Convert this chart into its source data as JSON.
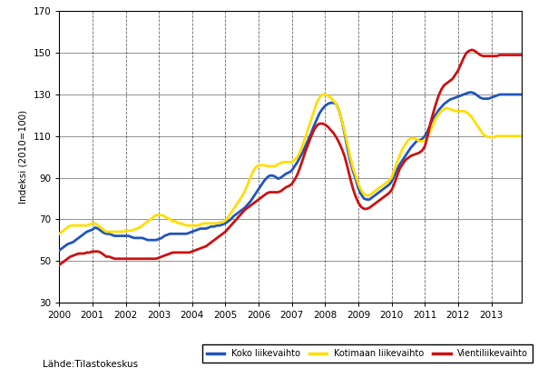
{
  "ylabel": "Indeksi (2010=100)",
  "source_label": "Lähde:Tilastokeskus",
  "ylim": [
    30,
    170
  ],
  "yticks": [
    30,
    50,
    70,
    90,
    110,
    130,
    150,
    170
  ],
  "xlim": [
    2000.0,
    2013.92
  ],
  "xticks": [
    2000,
    2001,
    2002,
    2003,
    2004,
    2005,
    2006,
    2007,
    2008,
    2009,
    2010,
    2011,
    2012,
    2013
  ],
  "line_colors": {
    "koko": "#2255bb",
    "kotimaan": "#ffdd00",
    "vienti": "#cc1111"
  },
  "legend_labels": [
    "Koko liikevaihto",
    "Kotimaan liikevaihto",
    "Vientiliikevaihto"
  ],
  "koko_liikevaihto": [
    55.0,
    56.0,
    57.0,
    58.0,
    58.5,
    59.0,
    60.0,
    61.0,
    62.0,
    63.0,
    64.0,
    64.5,
    65.0,
    66.0,
    65.5,
    64.5,
    63.5,
    63.0,
    63.0,
    62.5,
    62.0,
    62.0,
    62.0,
    62.0,
    62.0,
    62.0,
    61.5,
    61.0,
    61.0,
    61.0,
    61.0,
    60.5,
    60.0,
    60.0,
    60.0,
    60.0,
    60.5,
    61.0,
    62.0,
    62.5,
    63.0,
    63.0,
    63.0,
    63.0,
    63.0,
    63.0,
    63.0,
    63.5,
    64.0,
    64.5,
    65.0,
    65.5,
    65.5,
    65.5,
    66.0,
    66.5,
    66.5,
    67.0,
    67.0,
    67.5,
    68.0,
    69.0,
    70.0,
    71.5,
    72.5,
    73.5,
    74.5,
    75.5,
    77.0,
    78.5,
    80.5,
    82.5,
    84.5,
    86.5,
    88.5,
    90.0,
    91.0,
    91.0,
    90.5,
    89.5,
    90.0,
    91.0,
    92.0,
    92.5,
    93.5,
    95.5,
    97.5,
    100.0,
    102.5,
    105.5,
    108.5,
    111.5,
    115.0,
    118.0,
    121.0,
    123.0,
    124.5,
    125.5,
    126.0,
    126.0,
    125.5,
    122.5,
    117.5,
    111.5,
    104.5,
    98.5,
    93.5,
    89.5,
    85.0,
    82.0,
    80.0,
    79.5,
    79.5,
    80.5,
    81.5,
    82.5,
    83.5,
    84.5,
    85.5,
    86.5,
    88.0,
    91.0,
    94.0,
    96.5,
    98.5,
    100.5,
    102.5,
    104.5,
    106.0,
    107.5,
    108.0,
    108.5,
    110.0,
    112.5,
    115.5,
    118.5,
    120.5,
    122.5,
    124.0,
    125.5,
    126.5,
    127.5,
    128.0,
    128.5,
    129.0,
    129.5,
    130.0,
    130.5,
    131.0,
    131.0,
    130.5,
    129.5,
    128.5,
    128.0,
    128.0,
    128.0,
    128.5,
    129.0,
    129.5,
    130.0,
    130.0,
    130.0,
    130.0,
    130.0,
    130.0,
    130.0,
    130.0,
    130.0
  ],
  "kotimaan_liikevaihto": [
    63.0,
    64.0,
    65.0,
    66.0,
    67.0,
    67.0,
    67.0,
    67.0,
    67.0,
    67.0,
    67.0,
    67.5,
    68.0,
    68.0,
    67.0,
    66.0,
    65.0,
    64.0,
    64.0,
    64.0,
    64.0,
    64.0,
    64.0,
    64.0,
    64.5,
    64.5,
    64.5,
    65.0,
    65.5,
    66.0,
    67.0,
    68.0,
    69.0,
    70.0,
    71.0,
    72.0,
    72.0,
    72.0,
    71.5,
    70.5,
    70.0,
    69.0,
    69.0,
    68.0,
    68.0,
    67.5,
    67.0,
    67.0,
    67.0,
    67.0,
    67.0,
    67.5,
    68.0,
    68.0,
    68.0,
    68.0,
    68.0,
    68.0,
    68.5,
    68.5,
    69.5,
    71.0,
    73.0,
    75.0,
    77.0,
    79.0,
    81.0,
    83.5,
    86.5,
    90.0,
    93.0,
    95.0,
    96.0,
    96.0,
    96.0,
    95.5,
    95.5,
    95.5,
    95.5,
    96.5,
    97.0,
    97.5,
    97.5,
    97.5,
    97.5,
    98.5,
    100.0,
    102.5,
    106.0,
    110.0,
    114.0,
    118.0,
    122.0,
    126.0,
    128.5,
    130.0,
    130.0,
    129.5,
    128.5,
    127.0,
    125.5,
    122.5,
    117.5,
    112.5,
    106.5,
    100.5,
    95.0,
    91.0,
    87.0,
    84.0,
    82.0,
    81.5,
    81.5,
    82.5,
    83.5,
    84.5,
    85.5,
    86.5,
    87.5,
    88.5,
    90.0,
    93.5,
    97.5,
    101.0,
    104.0,
    106.0,
    108.0,
    109.0,
    109.0,
    108.5,
    107.5,
    107.5,
    108.0,
    109.5,
    112.5,
    115.5,
    118.5,
    120.5,
    122.0,
    123.0,
    123.5,
    123.0,
    122.5,
    122.0,
    122.0,
    122.0,
    122.0,
    121.5,
    120.5,
    119.0,
    117.0,
    115.0,
    113.0,
    111.0,
    110.0,
    109.5,
    109.5,
    109.5,
    110.0,
    110.0,
    110.0,
    110.0,
    110.0,
    110.0,
    110.0,
    110.0,
    110.0,
    110.0
  ],
  "vienti_liikevaihto": [
    48.0,
    49.0,
    50.0,
    51.0,
    52.0,
    52.5,
    53.0,
    53.5,
    53.5,
    53.5,
    54.0,
    54.0,
    54.5,
    54.5,
    54.5,
    54.0,
    53.0,
    52.0,
    52.0,
    51.5,
    51.0,
    51.0,
    51.0,
    51.0,
    51.0,
    51.0,
    51.0,
    51.0,
    51.0,
    51.0,
    51.0,
    51.0,
    51.0,
    51.0,
    51.0,
    51.0,
    51.5,
    52.0,
    52.5,
    53.0,
    53.5,
    54.0,
    54.0,
    54.0,
    54.0,
    54.0,
    54.0,
    54.0,
    54.5,
    55.0,
    55.5,
    56.0,
    56.5,
    57.0,
    58.0,
    59.0,
    60.0,
    61.0,
    62.0,
    63.0,
    64.0,
    65.5,
    67.0,
    68.5,
    70.0,
    71.5,
    73.0,
    74.5,
    75.5,
    76.5,
    77.5,
    78.5,
    79.5,
    80.5,
    81.5,
    82.5,
    83.0,
    83.0,
    83.0,
    83.0,
    83.5,
    84.5,
    85.5,
    86.0,
    87.0,
    89.0,
    91.5,
    95.0,
    99.0,
    103.0,
    106.5,
    110.0,
    113.0,
    115.0,
    116.0,
    116.0,
    115.5,
    114.5,
    113.0,
    111.5,
    109.5,
    107.0,
    104.0,
    100.5,
    95.5,
    90.0,
    85.0,
    81.0,
    78.0,
    76.0,
    75.0,
    75.0,
    75.5,
    76.5,
    77.5,
    78.5,
    79.5,
    80.5,
    81.5,
    82.5,
    84.0,
    87.0,
    91.0,
    94.5,
    96.5,
    98.5,
    99.5,
    100.5,
    101.0,
    101.5,
    102.0,
    103.0,
    105.0,
    110.0,
    116.0,
    121.0,
    125.5,
    129.5,
    132.5,
    134.5,
    135.5,
    136.5,
    137.5,
    139.5,
    141.5,
    144.5,
    147.5,
    150.0,
    151.0,
    151.5,
    151.0,
    150.0,
    149.0,
    148.5,
    148.5,
    148.5,
    148.5,
    148.5,
    148.5,
    149.0,
    149.0,
    149.0,
    149.0,
    149.0,
    149.0,
    149.0,
    149.0,
    149.0
  ]
}
